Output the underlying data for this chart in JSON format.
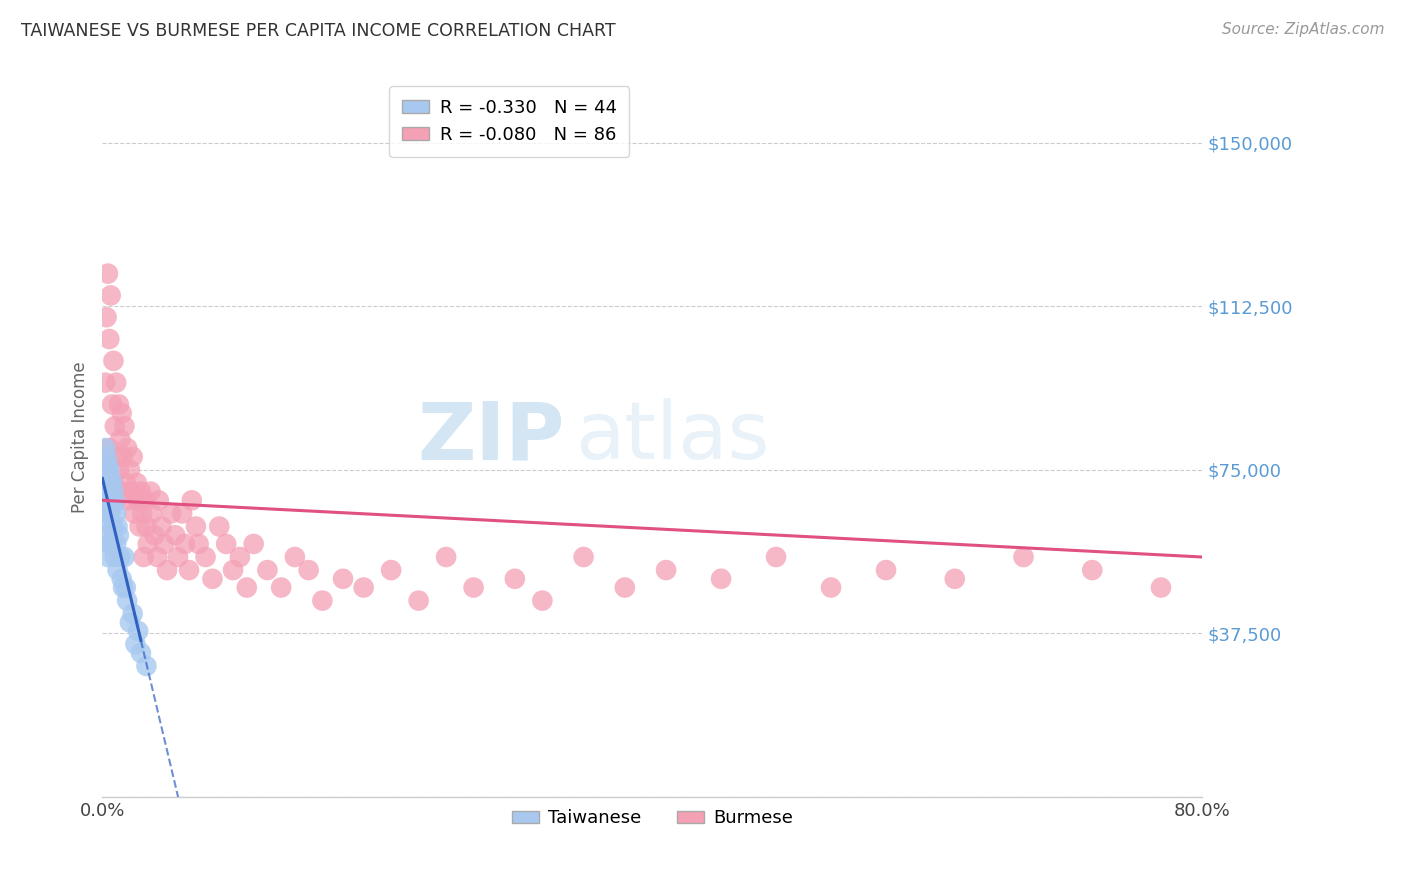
{
  "title": "TAIWANESE VS BURMESE PER CAPITA INCOME CORRELATION CHART",
  "source": "Source: ZipAtlas.com",
  "ylabel": "Per Capita Income",
  "xlim": [
    0,
    0.8
  ],
  "ylim": [
    0,
    165000
  ],
  "yticks": [
    0,
    37500,
    75000,
    112500,
    150000
  ],
  "ytick_labels": [
    "",
    "$37,500",
    "$75,000",
    "$112,500",
    "$150,000"
  ],
  "background_color": "#ffffff",
  "grid_color": "#cccccc",
  "watermark_zip": "ZIP",
  "watermark_atlas": "atlas",
  "taiwanese": {
    "color": "#a8c8f0",
    "line_color": "#3060c0",
    "line_style": "--",
    "R": -0.33,
    "N": 44,
    "label": "Taiwanese",
    "x": [
      0.001,
      0.001,
      0.002,
      0.002,
      0.002,
      0.003,
      0.003,
      0.003,
      0.003,
      0.004,
      0.004,
      0.004,
      0.004,
      0.005,
      0.005,
      0.005,
      0.005,
      0.006,
      0.006,
      0.006,
      0.007,
      0.007,
      0.007,
      0.008,
      0.008,
      0.009,
      0.009,
      0.01,
      0.01,
      0.011,
      0.011,
      0.012,
      0.013,
      0.014,
      0.015,
      0.016,
      0.017,
      0.018,
      0.02,
      0.022,
      0.024,
      0.026,
      0.028,
      0.032
    ],
    "y": [
      75000,
      68000,
      80000,
      72000,
      65000,
      78000,
      74000,
      70000,
      60000,
      76000,
      72000,
      68000,
      55000,
      75000,
      70000,
      65000,
      58000,
      73000,
      68000,
      62000,
      72000,
      66000,
      58000,
      70000,
      62000,
      68000,
      55000,
      65000,
      58000,
      62000,
      52000,
      60000,
      55000,
      50000,
      48000,
      55000,
      48000,
      45000,
      40000,
      42000,
      35000,
      38000,
      33000,
      30000
    ]
  },
  "burmese": {
    "color": "#f4a0b5",
    "line_color": "#e05080",
    "line_style": "-",
    "R": -0.08,
    "N": 86,
    "label": "Burmese",
    "x": [
      0.001,
      0.002,
      0.003,
      0.004,
      0.005,
      0.005,
      0.006,
      0.007,
      0.008,
      0.008,
      0.009,
      0.01,
      0.01,
      0.011,
      0.012,
      0.012,
      0.013,
      0.014,
      0.015,
      0.015,
      0.016,
      0.017,
      0.018,
      0.019,
      0.02,
      0.021,
      0.022,
      0.023,
      0.025,
      0.026,
      0.027,
      0.028,
      0.029,
      0.03,
      0.031,
      0.032,
      0.033,
      0.035,
      0.036,
      0.038,
      0.04,
      0.041,
      0.043,
      0.045,
      0.047,
      0.05,
      0.053,
      0.055,
      0.058,
      0.06,
      0.063,
      0.065,
      0.068,
      0.07,
      0.075,
      0.08,
      0.085,
      0.09,
      0.095,
      0.1,
      0.105,
      0.11,
      0.12,
      0.13,
      0.14,
      0.15,
      0.16,
      0.175,
      0.19,
      0.21,
      0.23,
      0.25,
      0.27,
      0.3,
      0.32,
      0.35,
      0.38,
      0.41,
      0.45,
      0.49,
      0.53,
      0.57,
      0.62,
      0.67,
      0.72,
      0.77
    ],
    "y": [
      75000,
      95000,
      110000,
      120000,
      105000,
      80000,
      115000,
      90000,
      100000,
      72000,
      85000,
      95000,
      68000,
      78000,
      90000,
      75000,
      82000,
      88000,
      70000,
      78000,
      85000,
      72000,
      80000,
      68000,
      75000,
      70000,
      78000,
      65000,
      72000,
      68000,
      62000,
      70000,
      65000,
      55000,
      68000,
      62000,
      58000,
      70000,
      65000,
      60000,
      55000,
      68000,
      62000,
      58000,
      52000,
      65000,
      60000,
      55000,
      65000,
      58000,
      52000,
      68000,
      62000,
      58000,
      55000,
      50000,
      62000,
      58000,
      52000,
      55000,
      48000,
      58000,
      52000,
      48000,
      55000,
      52000,
      45000,
      50000,
      48000,
      52000,
      45000,
      55000,
      48000,
      50000,
      45000,
      55000,
      48000,
      52000,
      50000,
      55000,
      48000,
      52000,
      50000,
      55000,
      52000,
      48000
    ]
  },
  "tw_line": {
    "x0": 0.0,
    "x1": 0.055,
    "y0": 73000,
    "y1": 0
  },
  "bm_line": {
    "x0": 0.0,
    "x1": 0.8,
    "y0": 68000,
    "y1": 55000
  }
}
